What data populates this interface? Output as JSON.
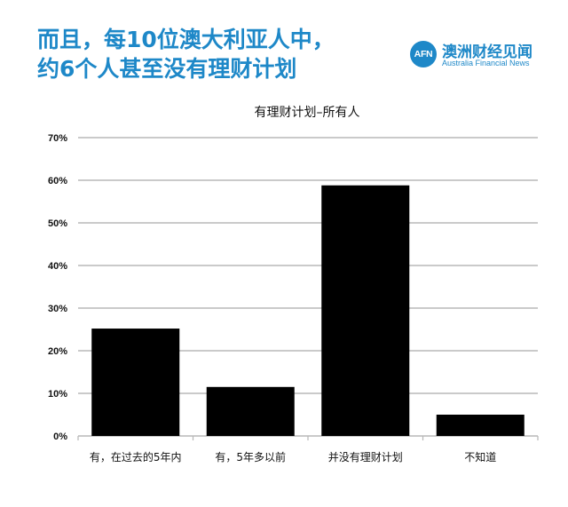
{
  "headline": {
    "line1": "而且，每10位澳大利亚人中，",
    "line2": "约6个人甚至没有理财计划"
  },
  "brand": {
    "logo_text": "AFN",
    "name_cn": "澳洲财经见闻",
    "name_en": "Australia Financial News",
    "color": "#1e88c8"
  },
  "chart_data": {
    "type": "bar",
    "title": "有理财计划–所有人",
    "categories": [
      "有，在过去的5年内",
      "有，5年多以前",
      "并没有理财计划",
      "不知道"
    ],
    "values": [
      25.2,
      11.5,
      58.8,
      5.0
    ],
    "ylim": [
      0,
      70
    ],
    "yticks": [
      "0%",
      "10%",
      "20%",
      "30%",
      "40%",
      "50%",
      "60%",
      "70%"
    ],
    "grid": true,
    "bar_color": "#000000",
    "xlabel": "",
    "ylabel": ""
  }
}
